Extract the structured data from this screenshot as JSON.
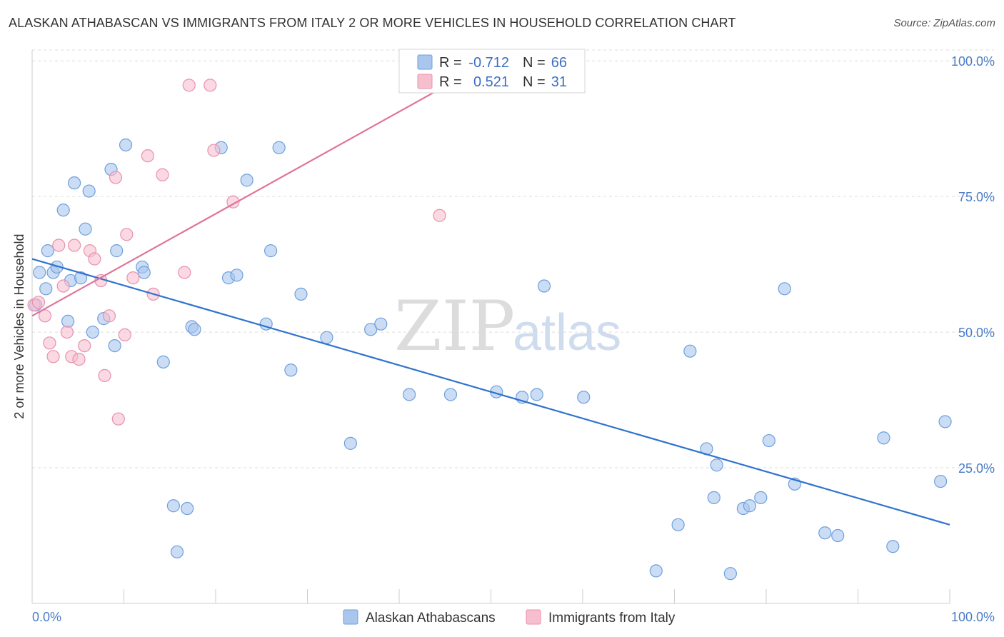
{
  "title": "ALASKAN ATHABASCAN VS IMMIGRANTS FROM ITALY 2 OR MORE VEHICLES IN HOUSEHOLD CORRELATION CHART",
  "source": "Source: ZipAtlas.com",
  "watermark": {
    "zip": "ZIP",
    "atlas": "atlas"
  },
  "legend_top": {
    "rows": [
      {
        "r_label": "R =",
        "r_value": "-0.712",
        "n_label": "N =",
        "n_value": "66"
      },
      {
        "r_label": "R =",
        "r_value": "0.521",
        "n_label": "N =",
        "n_value": "31"
      }
    ]
  },
  "legend_bottom": {
    "items": [
      {
        "label": "Alaskan Athabascans"
      },
      {
        "label": "Immigrants from Italy"
      }
    ]
  },
  "colors": {
    "blue_fill": "#a9c6ee",
    "blue_stroke": "#6f9fdc",
    "blue_line": "#2f72cf",
    "pink_fill": "#f6bfd0",
    "pink_stroke": "#e990ad",
    "pink_line": "#e0749a",
    "grid": "#dddddd",
    "tick_text": "#4a7cc7"
  },
  "chart_data": {
    "type": "scatter",
    "title": "ALASKAN ATHABASCAN VS IMMIGRANTS FROM ITALY 2 OR MORE VEHICLES IN HOUSEHOLD CORRELATION CHART",
    "xlabel": "",
    "ylabel": "2 or more Vehicles in Household",
    "xlim": [
      0,
      100
    ],
    "ylim": [
      0,
      102
    ],
    "x_tick_labels": [
      "0.0%",
      "100.0%"
    ],
    "y_ticks": [
      25,
      50,
      75,
      100
    ],
    "y_tick_labels": [
      "25.0%",
      "50.0%",
      "75.0%",
      "100.0%"
    ],
    "grid": true,
    "legend_placement": "top-center",
    "series": [
      {
        "name": "Alaskan Athabascans",
        "color": "#a9c6ee",
        "trend": {
          "x": [
            0,
            100
          ],
          "y": [
            63.5,
            14.5
          ]
        },
        "points": [
          [
            0.4,
            55
          ],
          [
            0.8,
            61
          ],
          [
            1.5,
            58
          ],
          [
            1.7,
            65
          ],
          [
            2.3,
            61
          ],
          [
            2.7,
            62
          ],
          [
            3.4,
            72.5
          ],
          [
            3.9,
            52
          ],
          [
            4.2,
            59.5
          ],
          [
            4.6,
            77.5
          ],
          [
            5.3,
            60
          ],
          [
            5.8,
            69
          ],
          [
            6.2,
            76
          ],
          [
            6.6,
            50
          ],
          [
            7.8,
            52.5
          ],
          [
            8.6,
            80
          ],
          [
            9.0,
            47.5
          ],
          [
            9.2,
            65
          ],
          [
            10.2,
            84.5
          ],
          [
            12.0,
            62
          ],
          [
            12.2,
            61
          ],
          [
            14.3,
            44.5
          ],
          [
            15.4,
            18
          ],
          [
            15.8,
            9.5
          ],
          [
            16.9,
            17.5
          ],
          [
            17.4,
            51
          ],
          [
            17.7,
            50.5
          ],
          [
            20.6,
            84
          ],
          [
            21.4,
            60
          ],
          [
            22.3,
            60.5
          ],
          [
            23.4,
            78
          ],
          [
            25.5,
            51.5
          ],
          [
            26.0,
            65
          ],
          [
            26.9,
            84
          ],
          [
            28.2,
            43
          ],
          [
            29.3,
            57
          ],
          [
            32.1,
            49
          ],
          [
            34.7,
            29.5
          ],
          [
            36.9,
            50.5
          ],
          [
            38.0,
            51.5
          ],
          [
            41.1,
            38.5
          ],
          [
            55.8,
            58.5
          ],
          [
            60.1,
            38
          ],
          [
            68.0,
            6
          ],
          [
            70.4,
            14.5
          ],
          [
            71.7,
            46.5
          ],
          [
            73.5,
            28.5
          ],
          [
            74.3,
            19.5
          ],
          [
            74.6,
            25.5
          ],
          [
            76.1,
            5.5
          ],
          [
            77.5,
            17.5
          ],
          [
            78.2,
            18
          ],
          [
            79.4,
            19.5
          ],
          [
            80.3,
            30
          ],
          [
            82.0,
            58
          ],
          [
            83.1,
            22
          ],
          [
            86.4,
            13
          ],
          [
            87.8,
            12.5
          ],
          [
            92.8,
            30.5
          ],
          [
            93.8,
            10.5
          ],
          [
            99.0,
            22.5
          ],
          [
            99.5,
            33.5
          ],
          [
            45.6,
            38.5
          ],
          [
            53.4,
            38
          ],
          [
            50.6,
            39
          ],
          [
            55.0,
            38.5
          ]
        ]
      },
      {
        "name": "Immigrants from Italy",
        "color": "#f6bfd0",
        "trend": {
          "x": [
            0,
            50.5
          ],
          "y": [
            53,
            100.5
          ]
        },
        "points": [
          [
            0.2,
            55
          ],
          [
            0.7,
            55.5
          ],
          [
            1.4,
            53
          ],
          [
            1.9,
            48
          ],
          [
            2.3,
            45.5
          ],
          [
            2.9,
            66
          ],
          [
            3.4,
            58.5
          ],
          [
            3.8,
            50
          ],
          [
            4.3,
            45.5
          ],
          [
            4.6,
            66
          ],
          [
            5.1,
            45
          ],
          [
            5.7,
            47.5
          ],
          [
            6.3,
            65
          ],
          [
            6.8,
            63.5
          ],
          [
            7.5,
            59.5
          ],
          [
            7.9,
            42
          ],
          [
            8.4,
            53
          ],
          [
            9.1,
            78.5
          ],
          [
            9.4,
            34
          ],
          [
            10.1,
            49.5
          ],
          [
            10.3,
            68
          ],
          [
            11.0,
            60
          ],
          [
            12.6,
            82.5
          ],
          [
            13.2,
            57
          ],
          [
            14.2,
            79
          ],
          [
            16.6,
            61
          ],
          [
            17.1,
            95.5
          ],
          [
            19.4,
            95.5
          ],
          [
            19.8,
            83.5
          ],
          [
            21.9,
            74
          ],
          [
            44.4,
            71.5
          ]
        ]
      }
    ]
  }
}
